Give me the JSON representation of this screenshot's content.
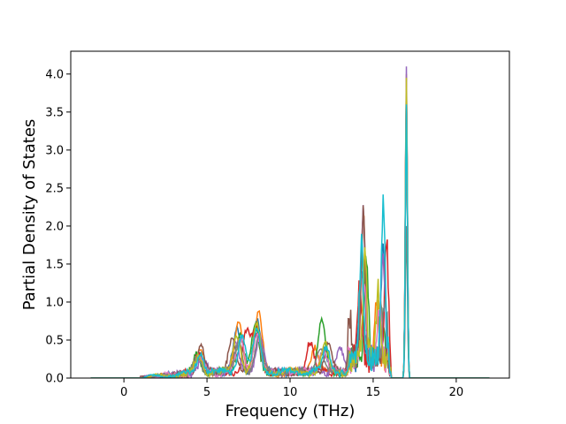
{
  "chart_data": {
    "type": "line",
    "title": "",
    "xlabel": "Frequency (THz)",
    "ylabel": "Partial Density of States",
    "xlim": [
      -3.2,
      23.2
    ],
    "ylim": [
      0.0,
      4.3
    ],
    "xticks": [
      0,
      5,
      10,
      15,
      20
    ],
    "yticks": [
      0.0,
      0.5,
      1.0,
      1.5,
      2.0,
      2.5,
      3.0,
      3.5,
      4.0
    ],
    "xtick_labels": [
      "0",
      "5",
      "10",
      "15",
      "20"
    ],
    "ytick_labels": [
      "0.0",
      "0.5",
      "1.0",
      "1.5",
      "2.0",
      "2.5",
      "3.0",
      "3.5",
      "4.0"
    ],
    "grid": false,
    "legend": "none",
    "x_range_of_series": [
      -2.0,
      22.0
    ],
    "series": [
      {
        "color": "#1f77b4",
        "peaks": [
          [
            4.5,
            0.22
          ],
          [
            6.8,
            0.55
          ],
          [
            8.0,
            0.7
          ],
          [
            12.0,
            0.3
          ],
          [
            14.3,
            1.4
          ],
          [
            15.6,
            1.6
          ],
          [
            17.0,
            3.9
          ]
        ]
      },
      {
        "color": "#ff7f0e",
        "peaks": [
          [
            4.6,
            0.3
          ],
          [
            6.9,
            0.7
          ],
          [
            8.1,
            0.8
          ],
          [
            11.5,
            0.35
          ],
          [
            14.4,
            1.85
          ],
          [
            15.2,
            0.9
          ],
          [
            17.0,
            4.0
          ]
        ]
      },
      {
        "color": "#2ca02c",
        "peaks": [
          [
            4.4,
            0.25
          ],
          [
            7.0,
            0.5
          ],
          [
            7.9,
            0.6
          ],
          [
            11.9,
            0.65
          ],
          [
            14.6,
            1.3
          ],
          [
            15.5,
            0.7
          ],
          [
            17.0,
            3.85
          ]
        ]
      },
      {
        "color": "#d62728",
        "peaks": [
          [
            4.5,
            0.28
          ],
          [
            7.4,
            0.55
          ],
          [
            8.0,
            0.6
          ],
          [
            11.2,
            0.4
          ],
          [
            14.2,
            0.9
          ],
          [
            15.8,
            1.55
          ],
          [
            17.0,
            3.8
          ]
        ]
      },
      {
        "color": "#9467bd",
        "peaks": [
          [
            4.7,
            0.2
          ],
          [
            6.7,
            0.4
          ],
          [
            8.2,
            0.5
          ],
          [
            13.0,
            0.3
          ],
          [
            14.4,
            1.9
          ],
          [
            15.6,
            1.3
          ],
          [
            17.0,
            4.1
          ]
        ]
      },
      {
        "color": "#8c564b",
        "peaks": [
          [
            4.6,
            0.35
          ],
          [
            6.5,
            0.45
          ],
          [
            8.0,
            0.55
          ],
          [
            12.3,
            0.4
          ],
          [
            13.6,
            0.55
          ],
          [
            14.4,
            1.9
          ],
          [
            17.0,
            3.7
          ]
        ]
      },
      {
        "color": "#e377c2",
        "peaks": [
          [
            4.5,
            0.2
          ],
          [
            7.0,
            0.45
          ],
          [
            8.0,
            0.5
          ],
          [
            12.0,
            0.3
          ],
          [
            14.5,
            1.0
          ],
          [
            15.4,
            0.8
          ],
          [
            17.0,
            3.9
          ]
        ]
      },
      {
        "color": "#7f7f7f",
        "peaks": [
          [
            4.4,
            0.18
          ],
          [
            6.9,
            0.4
          ],
          [
            8.1,
            0.45
          ],
          [
            11.8,
            0.3
          ],
          [
            14.3,
            1.2
          ],
          [
            15.7,
            0.9
          ],
          [
            17.0,
            2.0
          ]
        ]
      },
      {
        "color": "#bcbd22",
        "peaks": [
          [
            4.5,
            0.22
          ],
          [
            6.8,
            0.5
          ],
          [
            8.0,
            0.6
          ],
          [
            12.1,
            0.35
          ],
          [
            14.5,
            1.35
          ],
          [
            15.3,
            0.9
          ],
          [
            17.0,
            3.95
          ]
        ]
      },
      {
        "color": "#17becf",
        "peaks": [
          [
            4.6,
            0.25
          ],
          [
            7.1,
            0.5
          ],
          [
            8.0,
            0.55
          ],
          [
            12.2,
            0.3
          ],
          [
            14.3,
            1.5
          ],
          [
            15.6,
            2.0
          ],
          [
            17.0,
            3.6
          ]
        ]
      }
    ]
  }
}
